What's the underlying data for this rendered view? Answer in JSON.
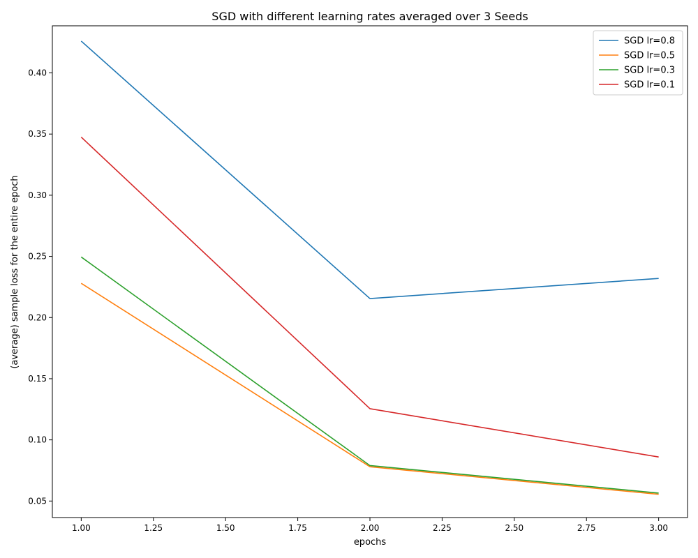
{
  "chart_data": {
    "type": "line",
    "title": "SGD with different learning rates averaged over 3 Seeds",
    "xlabel": "epochs",
    "ylabel": "(average) sample loss for the entire epoch",
    "xlim": [
      0.9,
      3.1
    ],
    "ylim": [
      0.0365,
      0.4385
    ],
    "x_ticks": [
      "1.00",
      "1.25",
      "1.50",
      "1.75",
      "2.00",
      "2.25",
      "2.50",
      "2.75",
      "3.00"
    ],
    "y_ticks": [
      "0.05",
      "0.10",
      "0.15",
      "0.20",
      "0.25",
      "0.30",
      "0.35",
      "0.40"
    ],
    "x": [
      1,
      2,
      3
    ],
    "grid": false,
    "legend_position": "top-right",
    "series": [
      {
        "name": "SGD lr=0.8",
        "color": "#1f77b4",
        "values": [
          0.426,
          0.2155,
          0.232
        ]
      },
      {
        "name": "SGD lr=0.5",
        "color": "#ff7f0e",
        "values": [
          0.228,
          0.078,
          0.0555
        ]
      },
      {
        "name": "SGD lr=0.3",
        "color": "#2ca02c",
        "values": [
          0.2495,
          0.079,
          0.0565
        ]
      },
      {
        "name": "SGD lr=0.1",
        "color": "#d62728",
        "values": [
          0.3475,
          0.1255,
          0.086
        ]
      }
    ]
  }
}
